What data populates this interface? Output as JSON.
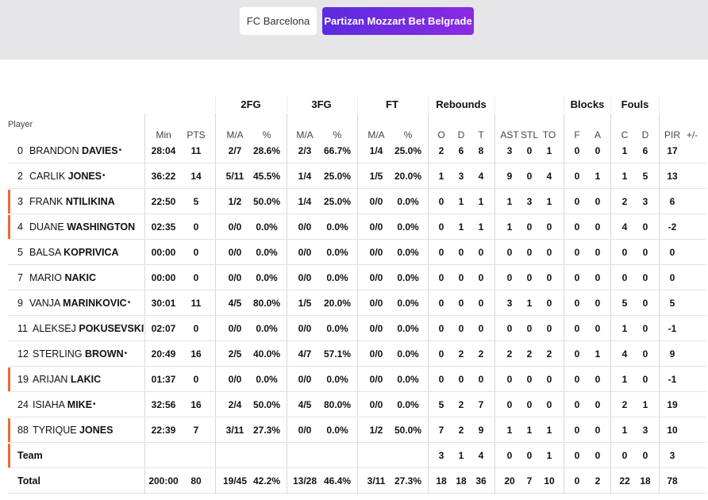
{
  "team_tabs": [
    {
      "label": "FC Barcelona",
      "active": false
    },
    {
      "label": "Partizan Mozzart Bet Belgrade",
      "active": true
    }
  ],
  "table": {
    "player_header": "Player",
    "groups": {
      "fg2": "2FG",
      "fg3": "3FG",
      "ft": "FT",
      "reb": "Rebounds",
      "blk": "Blocks",
      "fouls": "Fouls"
    },
    "columns": {
      "min": "Min",
      "pts": "PTS",
      "fg2_ma": "M/A",
      "fg2_pct": "%",
      "fg3_ma": "M/A",
      "fg3_pct": "%",
      "ft_ma": "M/A",
      "ft_pct": "%",
      "reb_o": "O",
      "reb_d": "D",
      "reb_t": "T",
      "ast": "AST",
      "stl": "STL",
      "to": "TO",
      "blk_f": "F",
      "blk_a": "A",
      "foul_c": "C",
      "foul_d": "D",
      "pir": "PIR",
      "pm": "+/-"
    },
    "rows": [
      {
        "num": "0",
        "first": "Brandon",
        "last": "DAVIES",
        "dot": "•",
        "accent": false,
        "min": "28:04",
        "pts": "11",
        "fg2_ma": "2/7",
        "fg2_pct": "28.6%",
        "fg3_ma": "2/3",
        "fg3_pct": "66.7%",
        "ft_ma": "1/4",
        "ft_pct": "25.0%",
        "reb_o": "2",
        "reb_d": "6",
        "reb_t": "8",
        "ast": "3",
        "stl": "0",
        "to": "1",
        "blk_f": "0",
        "blk_a": "0",
        "foul_c": "1",
        "foul_d": "6",
        "pir": "17",
        "pm": ""
      },
      {
        "num": "2",
        "first": "Carlik",
        "last": "JONES",
        "dot": "•",
        "accent": true,
        "min": "36:22",
        "pts": "14",
        "fg2_ma": "5/11",
        "fg2_pct": "45.5%",
        "fg3_ma": "1/4",
        "fg3_pct": "25.0%",
        "ft_ma": "1/5",
        "ft_pct": "20.0%",
        "reb_o": "1",
        "reb_d": "3",
        "reb_t": "4",
        "ast": "9",
        "stl": "0",
        "to": "4",
        "blk_f": "0",
        "blk_a": "1",
        "foul_c": "1",
        "foul_d": "5",
        "pir": "13",
        "pm": ""
      },
      {
        "num": "3",
        "first": "Frank",
        "last": "NTILIKINA",
        "dot": "",
        "accent": true,
        "min": "22:50",
        "pts": "5",
        "fg2_ma": "1/2",
        "fg2_pct": "50.0%",
        "fg3_ma": "1/4",
        "fg3_pct": "25.0%",
        "ft_ma": "0/0",
        "ft_pct": "0.0%",
        "reb_o": "0",
        "reb_d": "1",
        "reb_t": "1",
        "ast": "1",
        "stl": "3",
        "to": "1",
        "blk_f": "0",
        "blk_a": "0",
        "foul_c": "2",
        "foul_d": "3",
        "pir": "6",
        "pm": ""
      },
      {
        "num": "4",
        "first": "Duane",
        "last": "WASHINGTON",
        "dot": "",
        "accent": false,
        "min": "02:35",
        "pts": "0",
        "fg2_ma": "0/0",
        "fg2_pct": "0.0%",
        "fg3_ma": "0/0",
        "fg3_pct": "0.0%",
        "ft_ma": "0/0",
        "ft_pct": "0.0%",
        "reb_o": "0",
        "reb_d": "1",
        "reb_t": "1",
        "ast": "1",
        "stl": "0",
        "to": "0",
        "blk_f": "0",
        "blk_a": "0",
        "foul_c": "4",
        "foul_d": "0",
        "pir": "-2",
        "pm": ""
      },
      {
        "num": "5",
        "first": "Balsa",
        "last": "KOPRIVICA",
        "dot": "",
        "accent": false,
        "min": "00:00",
        "pts": "0",
        "fg2_ma": "0/0",
        "fg2_pct": "0.0%",
        "fg3_ma": "0/0",
        "fg3_pct": "0.0%",
        "ft_ma": "0/0",
        "ft_pct": "0.0%",
        "reb_o": "0",
        "reb_d": "0",
        "reb_t": "0",
        "ast": "0",
        "stl": "0",
        "to": "0",
        "blk_f": "0",
        "blk_a": "0",
        "foul_c": "0",
        "foul_d": "0",
        "pir": "0",
        "pm": ""
      },
      {
        "num": "7",
        "first": "Mario",
        "last": "NAKIC",
        "dot": "",
        "accent": false,
        "min": "00:00",
        "pts": "0",
        "fg2_ma": "0/0",
        "fg2_pct": "0.0%",
        "fg3_ma": "0/0",
        "fg3_pct": "0.0%",
        "ft_ma": "0/0",
        "ft_pct": "0.0%",
        "reb_o": "0",
        "reb_d": "0",
        "reb_t": "0",
        "ast": "0",
        "stl": "0",
        "to": "0",
        "blk_f": "0",
        "blk_a": "0",
        "foul_c": "0",
        "foul_d": "0",
        "pir": "0",
        "pm": ""
      },
      {
        "num": "9",
        "first": "Vanja",
        "last": "MARINKOVIC",
        "dot": "•",
        "accent": false,
        "min": "30:01",
        "pts": "11",
        "fg2_ma": "4/5",
        "fg2_pct": "80.0%",
        "fg3_ma": "1/5",
        "fg3_pct": "20.0%",
        "ft_ma": "0/0",
        "ft_pct": "0.0%",
        "reb_o": "0",
        "reb_d": "0",
        "reb_t": "0",
        "ast": "3",
        "stl": "1",
        "to": "0",
        "blk_f": "0",
        "blk_a": "0",
        "foul_c": "5",
        "foul_d": "0",
        "pir": "5",
        "pm": ""
      },
      {
        "num": "11",
        "first": "Aleksej",
        "last": "POKUSEVSKI",
        "dot": "",
        "accent": false,
        "min": "02:07",
        "pts": "0",
        "fg2_ma": "0/0",
        "fg2_pct": "0.0%",
        "fg3_ma": "0/0",
        "fg3_pct": "0.0%",
        "ft_ma": "0/0",
        "ft_pct": "0.0%",
        "reb_o": "0",
        "reb_d": "0",
        "reb_t": "0",
        "ast": "0",
        "stl": "0",
        "to": "0",
        "blk_f": "0",
        "blk_a": "0",
        "foul_c": "1",
        "foul_d": "0",
        "pir": "-1",
        "pm": ""
      },
      {
        "num": "12",
        "first": "Sterling",
        "last": "BROWN",
        "dot": "•",
        "accent": true,
        "min": "20:49",
        "pts": "16",
        "fg2_ma": "2/5",
        "fg2_pct": "40.0%",
        "fg3_ma": "4/7",
        "fg3_pct": "57.1%",
        "ft_ma": "0/0",
        "ft_pct": "0.0%",
        "reb_o": "0",
        "reb_d": "2",
        "reb_t": "2",
        "ast": "2",
        "stl": "2",
        "to": "2",
        "blk_f": "0",
        "blk_a": "1",
        "foul_c": "4",
        "foul_d": "0",
        "pir": "9",
        "pm": ""
      },
      {
        "num": "19",
        "first": "Arijan",
        "last": "LAKIC",
        "dot": "",
        "accent": false,
        "min": "01:37",
        "pts": "0",
        "fg2_ma": "0/0",
        "fg2_pct": "0.0%",
        "fg3_ma": "0/0",
        "fg3_pct": "0.0%",
        "ft_ma": "0/0",
        "ft_pct": "0.0%",
        "reb_o": "0",
        "reb_d": "0",
        "reb_t": "0",
        "ast": "0",
        "stl": "0",
        "to": "0",
        "blk_f": "0",
        "blk_a": "0",
        "foul_c": "1",
        "foul_d": "0",
        "pir": "-1",
        "pm": ""
      },
      {
        "num": "24",
        "first": "Isiaha",
        "last": "MIKE",
        "dot": "•",
        "accent": true,
        "min": "32:56",
        "pts": "16",
        "fg2_ma": "2/4",
        "fg2_pct": "50.0%",
        "fg3_ma": "4/5",
        "fg3_pct": "80.0%",
        "ft_ma": "0/0",
        "ft_pct": "0.0%",
        "reb_o": "5",
        "reb_d": "2",
        "reb_t": "7",
        "ast": "0",
        "stl": "0",
        "to": "0",
        "blk_f": "0",
        "blk_a": "0",
        "foul_c": "2",
        "foul_d": "1",
        "pir": "19",
        "pm": ""
      },
      {
        "num": "88",
        "first": "Tyrique",
        "last": "JONES",
        "dot": "",
        "accent": true,
        "min": "22:39",
        "pts": "7",
        "fg2_ma": "3/11",
        "fg2_pct": "27.3%",
        "fg3_ma": "0/0",
        "fg3_pct": "0.0%",
        "ft_ma": "1/2",
        "ft_pct": "50.0%",
        "reb_o": "7",
        "reb_d": "2",
        "reb_t": "9",
        "ast": "1",
        "stl": "1",
        "to": "1",
        "blk_f": "0",
        "blk_a": "0",
        "foul_c": "1",
        "foul_d": "3",
        "pir": "10",
        "pm": ""
      }
    ],
    "team_row": {
      "label": "Team",
      "reb_o": "3",
      "reb_d": "1",
      "reb_t": "4",
      "ast": "0",
      "stl": "0",
      "to": "1",
      "blk_f": "0",
      "blk_a": "0",
      "foul_c": "0",
      "foul_d": "0",
      "pir": "3"
    },
    "total_row": {
      "label": "Total",
      "min": "200:00",
      "pts": "80",
      "fg2_ma": "19/45",
      "fg2_pct": "42.2%",
      "fg3_ma": "13/28",
      "fg3_pct": "46.4%",
      "ft_ma": "3/11",
      "ft_pct": "27.3%",
      "reb_o": "18",
      "reb_d": "18",
      "reb_t": "36",
      "ast": "20",
      "stl": "7",
      "to": "10",
      "blk_f": "0",
      "blk_a": "2",
      "foul_c": "22",
      "foul_d": "18",
      "pir": "78"
    }
  },
  "colors": {
    "accent": "#f06b36",
    "active_tab_start": "#5b2be0",
    "active_tab_end": "#8a2be2",
    "header_bg": "#e6e6e8"
  }
}
